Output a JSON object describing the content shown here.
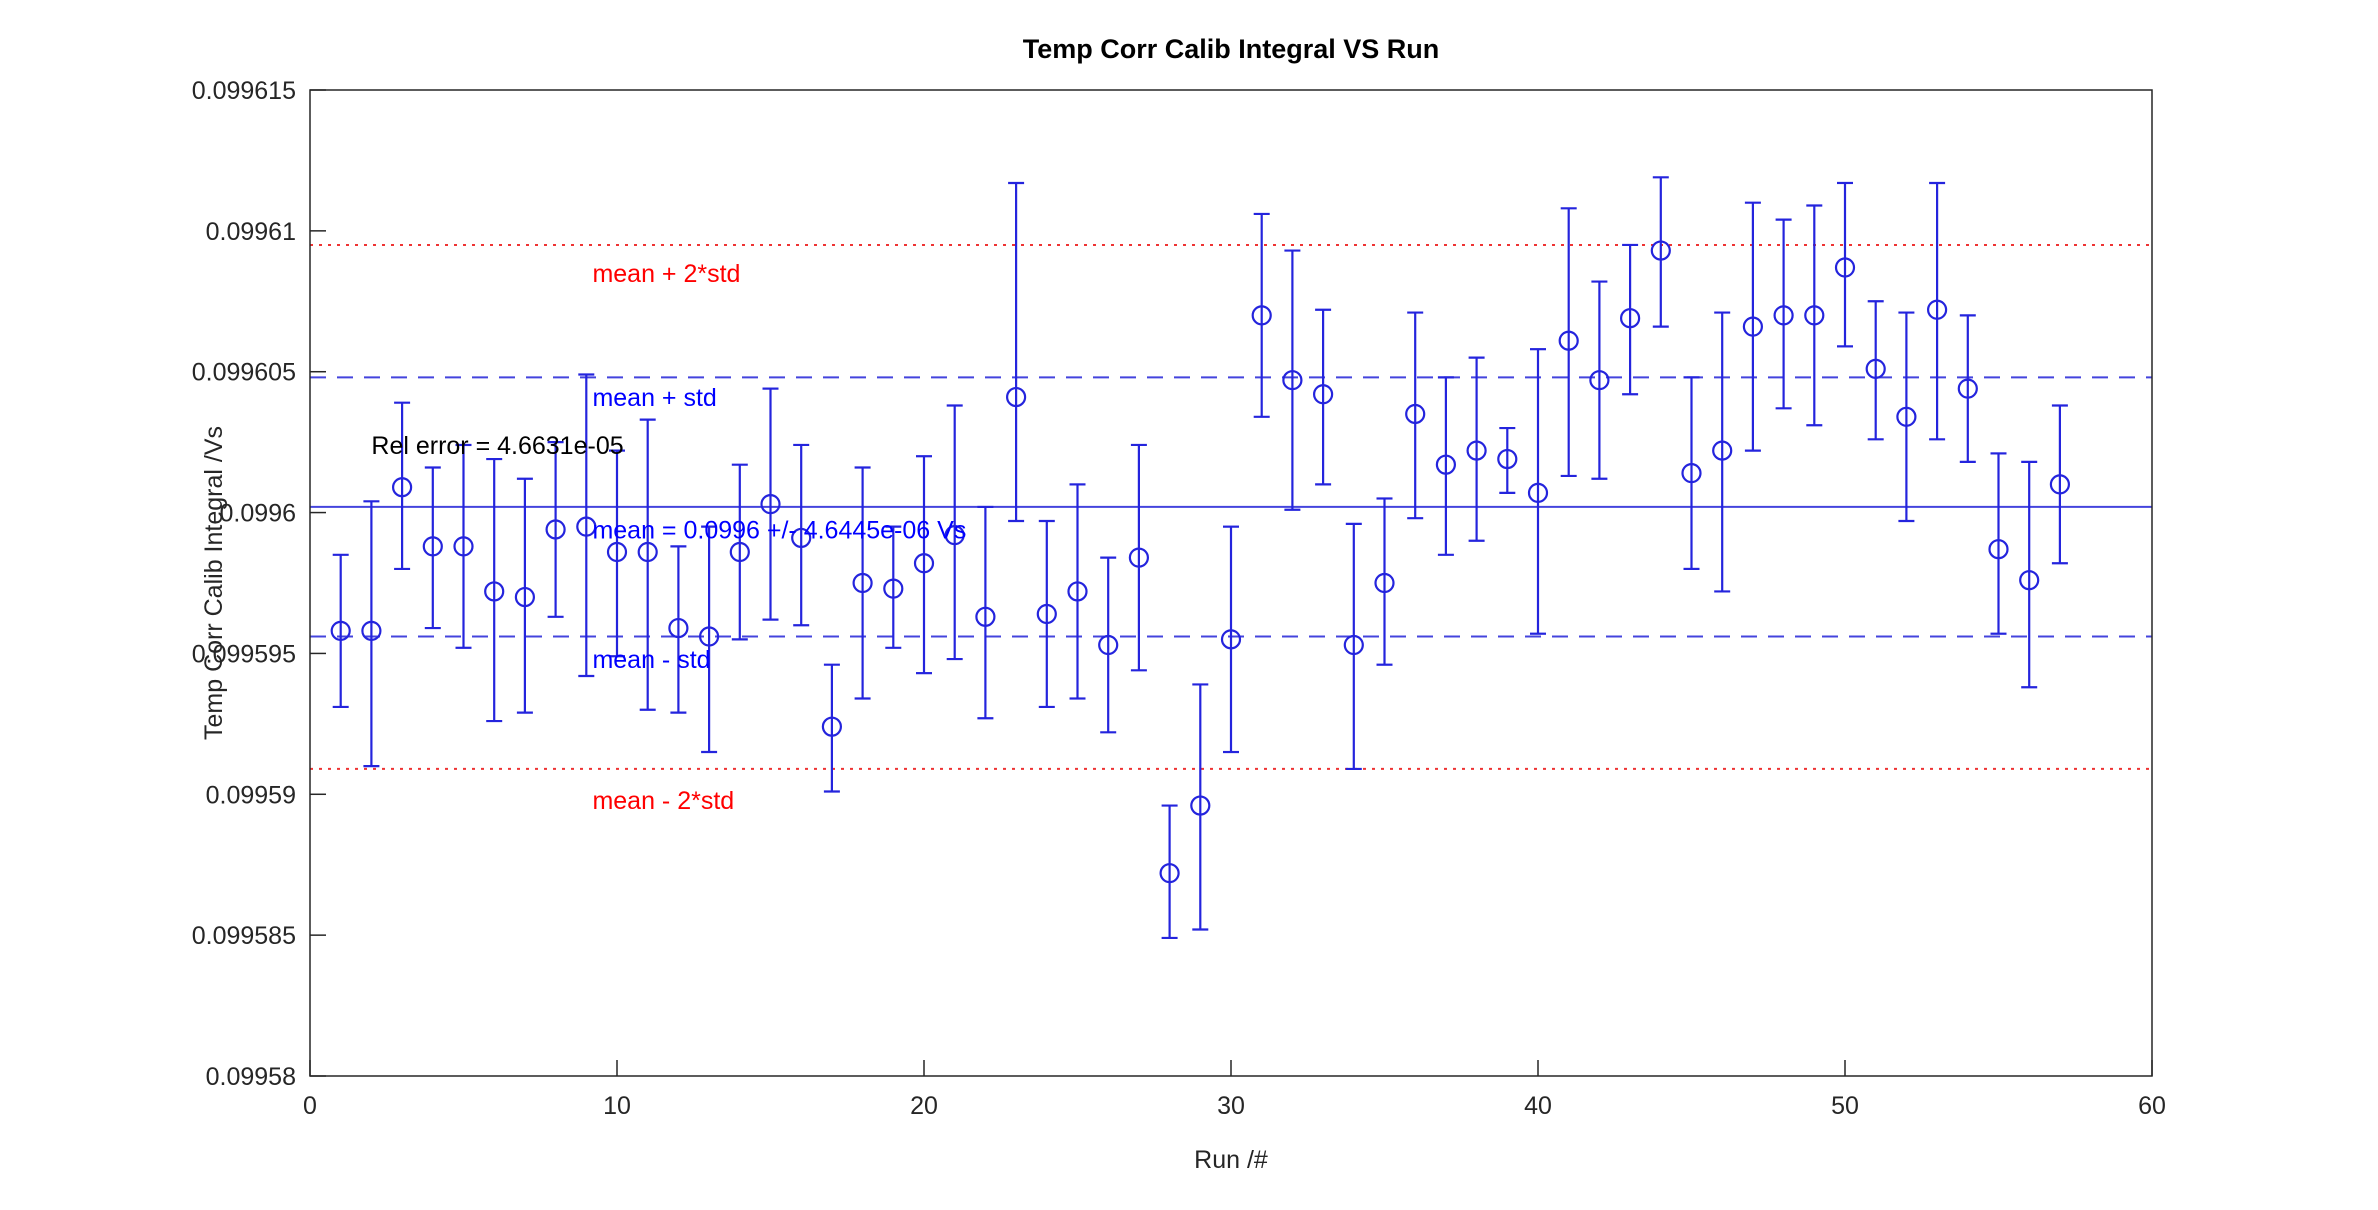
{
  "figure": {
    "background": "#ffffff"
  },
  "chart_data": {
    "type": "scatter",
    "title": "Temp Corr Calib Integral VS Run",
    "xlabel": "Run /#",
    "ylabel": "Temp Corr Calib Integral /Vs",
    "xlim": [
      0,
      60
    ],
    "ylim": [
      0.09958,
      0.099615
    ],
    "grid": false,
    "legend": null,
    "xticks": {
      "values": [
        0,
        10,
        20,
        30,
        40,
        50,
        60
      ],
      "labels": [
        "0",
        "10",
        "20",
        "30",
        "40",
        "50",
        "60"
      ]
    },
    "yticks": {
      "values": [
        0.09958,
        0.099585,
        0.09959,
        0.099595,
        0.0996,
        0.099605,
        0.09961,
        0.099615
      ],
      "labels": [
        "0.09958",
        "0.099585",
        "0.09959",
        "0.099595",
        "0.0996",
        "0.099605",
        "0.09961",
        "0.099615"
      ]
    },
    "stats": {
      "mean": 0.0996002,
      "std": 4.6445e-06,
      "rel_error": 4.6631e-05
    },
    "colors": {
      "data_blue": "#2424dd",
      "line_blue": "#4444dd",
      "line_red": "#ee3333",
      "text_blue": "#0000ff",
      "text_red": "#ff0000",
      "text_black": "#000000",
      "axis": "#262626"
    },
    "reference_lines": [
      {
        "name": "mean-plus-2std-line",
        "value": 0.0996095,
        "style": "dotted",
        "color": "#ee3333"
      },
      {
        "name": "mean-plus-std-line",
        "value": 0.0996048,
        "style": "dashed",
        "color": "#4444dd"
      },
      {
        "name": "mean-line",
        "value": 0.0996002,
        "style": "solid",
        "color": "#4444dd"
      },
      {
        "name": "mean-minus-std-line",
        "value": 0.0995956,
        "style": "dashed",
        "color": "#4444dd"
      },
      {
        "name": "mean-minus-2std-line",
        "value": 0.0995909,
        "style": "dotted",
        "color": "#ee3333"
      }
    ],
    "annotations": [
      {
        "name": "rel-error-label",
        "text": "Rel error = 4.6631e-05",
        "color": "#000000",
        "x": 2.0,
        "y": 0.0996024
      },
      {
        "name": "mean-plus-2std-label",
        "text": "mean + 2*std",
        "color": "#ff0000",
        "x": 9.2,
        "y": 0.0996085
      },
      {
        "name": "mean-plus-std-label",
        "text": "mean + std",
        "color": "#0000ff",
        "x": 9.2,
        "y": 0.0996041
      },
      {
        "name": "mean-value-label",
        "text": "mean = 0.0996 +/- 4.6445e-06 Vs",
        "color": "#0000ff",
        "x": 9.2,
        "y": 0.0995994
      },
      {
        "name": "mean-minus-std-label",
        "text": "mean - std",
        "color": "#0000ff",
        "x": 9.2,
        "y": 0.0995948
      },
      {
        "name": "mean-minus-2std-label",
        "text": "mean - 2*std",
        "color": "#ff0000",
        "x": 9.2,
        "y": 0.0995898
      }
    ],
    "series": [
      {
        "name": "calib-integral-vs-run",
        "marker": "circle",
        "color": "#2424dd",
        "points": [
          {
            "x": 1,
            "y": 0.0995958,
            "hi": 0.0995985,
            "lo": 0.0995931
          },
          {
            "x": 2,
            "y": 0.0995958,
            "hi": 0.0996004,
            "lo": 0.099591
          },
          {
            "x": 3,
            "y": 0.0996009,
            "hi": 0.0996039,
            "lo": 0.099598
          },
          {
            "x": 4,
            "y": 0.0995988,
            "hi": 0.0996016,
            "lo": 0.0995959
          },
          {
            "x": 5,
            "y": 0.0995988,
            "hi": 0.0996024,
            "lo": 0.0995952
          },
          {
            "x": 6,
            "y": 0.0995972,
            "hi": 0.0996019,
            "lo": 0.0995926
          },
          {
            "x": 7,
            "y": 0.099597,
            "hi": 0.0996012,
            "lo": 0.0995929
          },
          {
            "x": 8,
            "y": 0.0995994,
            "hi": 0.0996025,
            "lo": 0.0995963
          },
          {
            "x": 9,
            "y": 0.0995995,
            "hi": 0.0996049,
            "lo": 0.0995942
          },
          {
            "x": 10,
            "y": 0.0995986,
            "hi": 0.0996022,
            "lo": 0.0995949
          },
          {
            "x": 11,
            "y": 0.0995986,
            "hi": 0.0996033,
            "lo": 0.099593
          },
          {
            "x": 12,
            "y": 0.0995959,
            "hi": 0.0995988,
            "lo": 0.0995929
          },
          {
            "x": 13,
            "y": 0.0995956,
            "hi": 0.0995995,
            "lo": 0.0995915
          },
          {
            "x": 14,
            "y": 0.0995986,
            "hi": 0.0996017,
            "lo": 0.0995955
          },
          {
            "x": 15,
            "y": 0.0996003,
            "hi": 0.0996044,
            "lo": 0.0995962
          },
          {
            "x": 16,
            "y": 0.0995991,
            "hi": 0.0996024,
            "lo": 0.099596
          },
          {
            "x": 17,
            "y": 0.0995924,
            "hi": 0.0995946,
            "lo": 0.0995901
          },
          {
            "x": 18,
            "y": 0.0995975,
            "hi": 0.0996016,
            "lo": 0.0995934
          },
          {
            "x": 19,
            "y": 0.0995973,
            "hi": 0.0995995,
            "lo": 0.0995952
          },
          {
            "x": 20,
            "y": 0.0995982,
            "hi": 0.099602,
            "lo": 0.0995943
          },
          {
            "x": 21,
            "y": 0.0995992,
            "hi": 0.0996038,
            "lo": 0.0995948
          },
          {
            "x": 22,
            "y": 0.0995963,
            "hi": 0.0996002,
            "lo": 0.0995927
          },
          {
            "x": 23,
            "y": 0.0996041,
            "hi": 0.0996117,
            "lo": 0.0995997
          },
          {
            "x": 24,
            "y": 0.0995964,
            "hi": 0.0995997,
            "lo": 0.0995931
          },
          {
            "x": 25,
            "y": 0.0995972,
            "hi": 0.099601,
            "lo": 0.0995934
          },
          {
            "x": 26,
            "y": 0.0995953,
            "hi": 0.0995984,
            "lo": 0.0995922
          },
          {
            "x": 27,
            "y": 0.0995984,
            "hi": 0.0996024,
            "lo": 0.0995944
          },
          {
            "x": 28,
            "y": 0.0995872,
            "hi": 0.0995896,
            "lo": 0.0995849
          },
          {
            "x": 29,
            "y": 0.0995896,
            "hi": 0.0995939,
            "lo": 0.0995852
          },
          {
            "x": 30,
            "y": 0.0995955,
            "hi": 0.0995995,
            "lo": 0.0995915
          },
          {
            "x": 31,
            "y": 0.099607,
            "hi": 0.0996106,
            "lo": 0.0996034
          },
          {
            "x": 32,
            "y": 0.0996047,
            "hi": 0.0996093,
            "lo": 0.0996001
          },
          {
            "x": 33,
            "y": 0.0996042,
            "hi": 0.0996072,
            "lo": 0.099601
          },
          {
            "x": 34,
            "y": 0.0995953,
            "hi": 0.0995996,
            "lo": 0.0995909
          },
          {
            "x": 35,
            "y": 0.0995975,
            "hi": 0.0996005,
            "lo": 0.0995946
          },
          {
            "x": 36,
            "y": 0.0996035,
            "hi": 0.0996071,
            "lo": 0.0995998
          },
          {
            "x": 37,
            "y": 0.0996017,
            "hi": 0.0996048,
            "lo": 0.0995985
          },
          {
            "x": 38,
            "y": 0.0996022,
            "hi": 0.0996055,
            "lo": 0.099599
          },
          {
            "x": 39,
            "y": 0.0996019,
            "hi": 0.099603,
            "lo": 0.0996007
          },
          {
            "x": 40,
            "y": 0.0996007,
            "hi": 0.0996058,
            "lo": 0.0995957
          },
          {
            "x": 41,
            "y": 0.0996061,
            "hi": 0.0996108,
            "lo": 0.0996013
          },
          {
            "x": 42,
            "y": 0.0996047,
            "hi": 0.0996082,
            "lo": 0.0996012
          },
          {
            "x": 43,
            "y": 0.0996069,
            "hi": 0.0996095,
            "lo": 0.0996042
          },
          {
            "x": 44,
            "y": 0.0996093,
            "hi": 0.0996119,
            "lo": 0.0996066
          },
          {
            "x": 45,
            "y": 0.0996014,
            "hi": 0.0996048,
            "lo": 0.099598
          },
          {
            "x": 46,
            "y": 0.0996022,
            "hi": 0.0996071,
            "lo": 0.0995972
          },
          {
            "x": 47,
            "y": 0.0996066,
            "hi": 0.099611,
            "lo": 0.0996022
          },
          {
            "x": 48,
            "y": 0.099607,
            "hi": 0.0996104,
            "lo": 0.0996037
          },
          {
            "x": 49,
            "y": 0.099607,
            "hi": 0.0996109,
            "lo": 0.0996031
          },
          {
            "x": 50,
            "y": 0.0996087,
            "hi": 0.0996117,
            "lo": 0.0996059
          },
          {
            "x": 51,
            "y": 0.0996051,
            "hi": 0.0996075,
            "lo": 0.0996026
          },
          {
            "x": 52,
            "y": 0.0996034,
            "hi": 0.0996071,
            "lo": 0.0995997
          },
          {
            "x": 53,
            "y": 0.0996072,
            "hi": 0.0996117,
            "lo": 0.0996026
          },
          {
            "x": 54,
            "y": 0.0996044,
            "hi": 0.099607,
            "lo": 0.0996018
          },
          {
            "x": 55,
            "y": 0.0995987,
            "hi": 0.0996021,
            "lo": 0.0995957
          },
          {
            "x": 56,
            "y": 0.0995976,
            "hi": 0.0996018,
            "lo": 0.0995938
          },
          {
            "x": 57,
            "y": 0.099601,
            "hi": 0.0996038,
            "lo": 0.0995982
          }
        ]
      }
    ]
  }
}
